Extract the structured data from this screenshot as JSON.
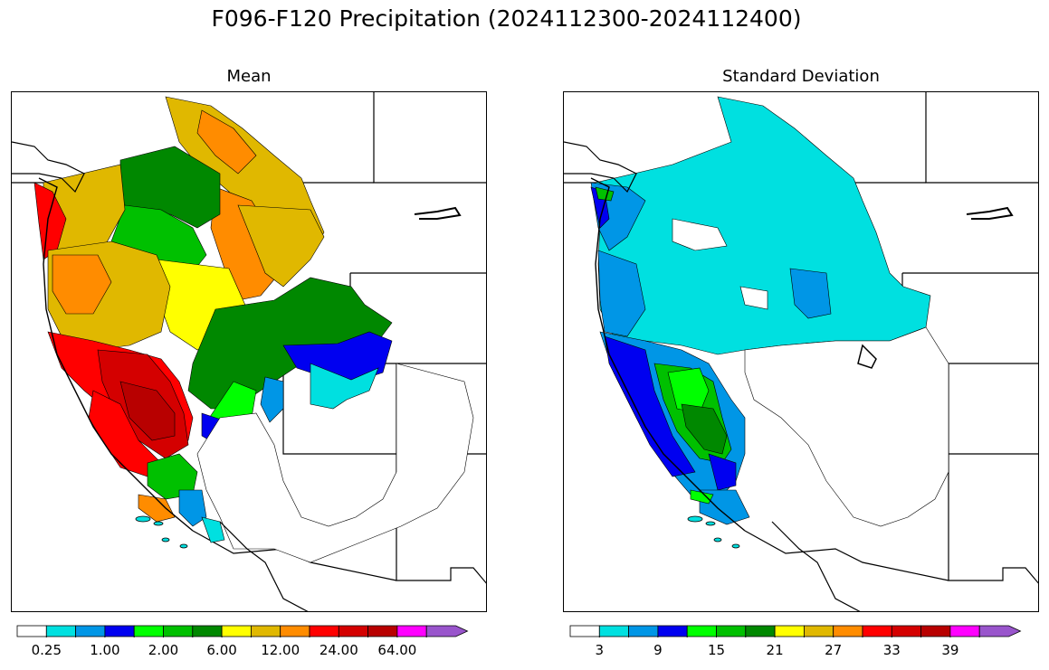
{
  "title": "F096-F120 Precipitation (2024112300-2024112400)",
  "panels": {
    "mean": {
      "title": "Mean",
      "colorbar": {
        "colors": [
          "#ffffff",
          "#00e0e0",
          "#0096e6",
          "#0000f0",
          "#00ff00",
          "#00c000",
          "#008800",
          "#ffff00",
          "#e0b800",
          "#ff8c00",
          "#ff0000",
          "#d40000",
          "#b80000",
          "#ff00ff",
          "#9955cc"
        ],
        "tick_labels": [
          "0.25",
          "1.00",
          "2.00",
          "6.00",
          "12.00",
          "24.00",
          "64.00"
        ]
      }
    },
    "std": {
      "title": "Standard Deviation",
      "colorbar": {
        "colors": [
          "#ffffff",
          "#00e0e0",
          "#0096e6",
          "#0000f0",
          "#00ff00",
          "#00c000",
          "#008800",
          "#ffff00",
          "#e0b800",
          "#ff8c00",
          "#ff0000",
          "#d40000",
          "#b80000",
          "#ff00ff",
          "#9955cc"
        ],
        "tick_labels": [
          "3",
          "9",
          "15",
          "21",
          "27",
          "33",
          "39"
        ]
      }
    }
  }
}
